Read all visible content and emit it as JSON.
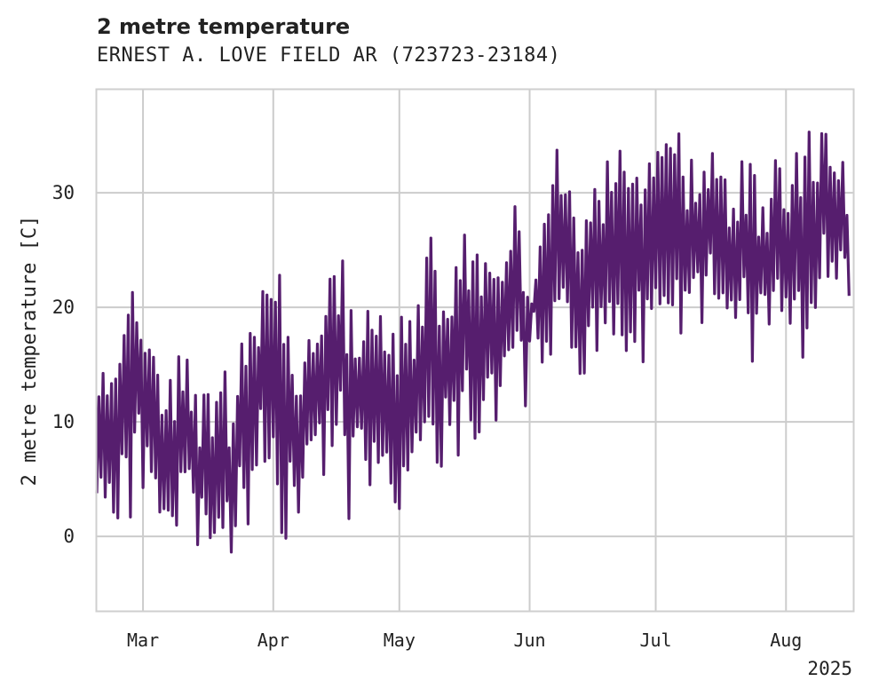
{
  "chart_data": {
    "type": "line",
    "title": "2 metre temperature",
    "subtitle": "ERNEST A. LOVE FIELD AR (723723-23184)",
    "ylabel": "2 metre temperature [C]",
    "xlabel": "",
    "year_label": "2025",
    "x_ticks": [
      {
        "date": "2025-03-01",
        "label": "Mar"
      },
      {
        "date": "2025-04-01",
        "label": "Apr"
      },
      {
        "date": "2025-05-01",
        "label": "May"
      },
      {
        "date": "2025-06-01",
        "label": "Jun"
      },
      {
        "date": "2025-07-01",
        "label": "Jul"
      },
      {
        "date": "2025-08-01",
        "label": "Aug"
      }
    ],
    "y_ticks": [
      0,
      10,
      20,
      30
    ],
    "xlim": [
      "2025-02-18",
      "2025-08-17"
    ],
    "ylim": [
      -6.5,
      39
    ],
    "grid": true,
    "color": "#561e6e",
    "series": [
      {
        "name": "",
        "x": [
          "2025-02-18",
          "2025-02-20",
          "2025-02-22",
          "2025-02-24",
          "2025-02-26",
          "2025-02-28",
          "2025-03-02",
          "2025-03-04",
          "2025-03-06",
          "2025-03-08",
          "2025-03-10",
          "2025-03-12",
          "2025-03-14",
          "2025-03-16",
          "2025-03-18",
          "2025-03-20",
          "2025-03-22",
          "2025-03-24",
          "2025-03-26",
          "2025-03-28",
          "2025-03-30",
          "2025-04-01",
          "2025-04-03",
          "2025-04-05",
          "2025-04-07",
          "2025-04-09",
          "2025-04-11",
          "2025-04-13",
          "2025-04-15",
          "2025-04-17",
          "2025-04-19",
          "2025-04-21",
          "2025-04-23",
          "2025-04-25",
          "2025-04-27",
          "2025-04-29",
          "2025-05-01",
          "2025-05-03",
          "2025-05-05",
          "2025-05-07",
          "2025-05-09",
          "2025-05-11",
          "2025-05-13",
          "2025-05-15",
          "2025-05-17",
          "2025-05-19",
          "2025-05-21",
          "2025-05-23",
          "2025-05-25",
          "2025-05-27",
          "2025-05-29",
          "2025-05-31",
          "2025-06-02",
          "2025-06-04",
          "2025-06-06",
          "2025-06-08",
          "2025-06-10",
          "2025-06-12",
          "2025-06-14",
          "2025-06-16",
          "2025-06-18",
          "2025-06-20",
          "2025-06-22",
          "2025-06-24",
          "2025-06-26",
          "2025-06-28",
          "2025-06-30",
          "2025-07-02",
          "2025-07-04",
          "2025-07-06",
          "2025-07-08",
          "2025-07-10",
          "2025-07-12",
          "2025-07-14",
          "2025-07-16",
          "2025-07-18",
          "2025-07-20",
          "2025-07-22",
          "2025-07-24",
          "2025-07-26",
          "2025-07-28",
          "2025-07-30",
          "2025-08-01",
          "2025-08-03",
          "2025-08-05",
          "2025-08-07",
          "2025-08-09",
          "2025-08-11",
          "2025-08-13",
          "2025-08-15",
          "2025-08-16"
        ],
        "min": [
          3,
          2,
          -1,
          4,
          -2,
          5,
          3,
          0,
          1,
          -2,
          1,
          4,
          -3,
          0,
          -1,
          -3,
          -2,
          3,
          -2,
          5,
          6,
          2,
          -4,
          1,
          0,
          6,
          8,
          5,
          3,
          7,
          -1,
          7,
          5,
          3,
          7,
          3,
          2,
          4,
          7,
          8,
          6,
          5,
          9,
          6,
          9,
          7,
          8,
          11,
          9,
          12,
          14,
          11,
          19,
          15,
          13,
          15,
          14,
          14,
          12,
          16,
          13,
          14,
          19,
          13,
          17,
          14,
          19,
          17,
          20,
          17,
          18,
          20,
          17,
          22,
          18,
          17,
          17,
          17,
          14,
          17,
          18,
          21,
          16,
          18,
          15,
          15,
          21,
          22,
          20,
          23,
          21
        ],
        "max": [
          15,
          17,
          16,
          19,
          23,
          24,
          18,
          16,
          12,
          15,
          18,
          15,
          12,
          16,
          12,
          18,
          11,
          20,
          17,
          20,
          24,
          27,
          23,
          18,
          17,
          16,
          21,
          22,
          29,
          25,
          22,
          17,
          21,
          20,
          19,
          17,
          21,
          19,
          20,
          25,
          27,
          22,
          25,
          24,
          28,
          27,
          25,
          26,
          28,
          29,
          32,
          22,
          21,
          27,
          33,
          35,
          36,
          29,
          28,
          31,
          34,
          33,
          36,
          31,
          34,
          32,
          36,
          35,
          35,
          37,
          34,
          33,
          33,
          35,
          33,
          32,
          31,
          34,
          33,
          30,
          31,
          34,
          34,
          35,
          33,
          37,
          36,
          36,
          35,
          34,
          23
        ]
      }
    ]
  }
}
